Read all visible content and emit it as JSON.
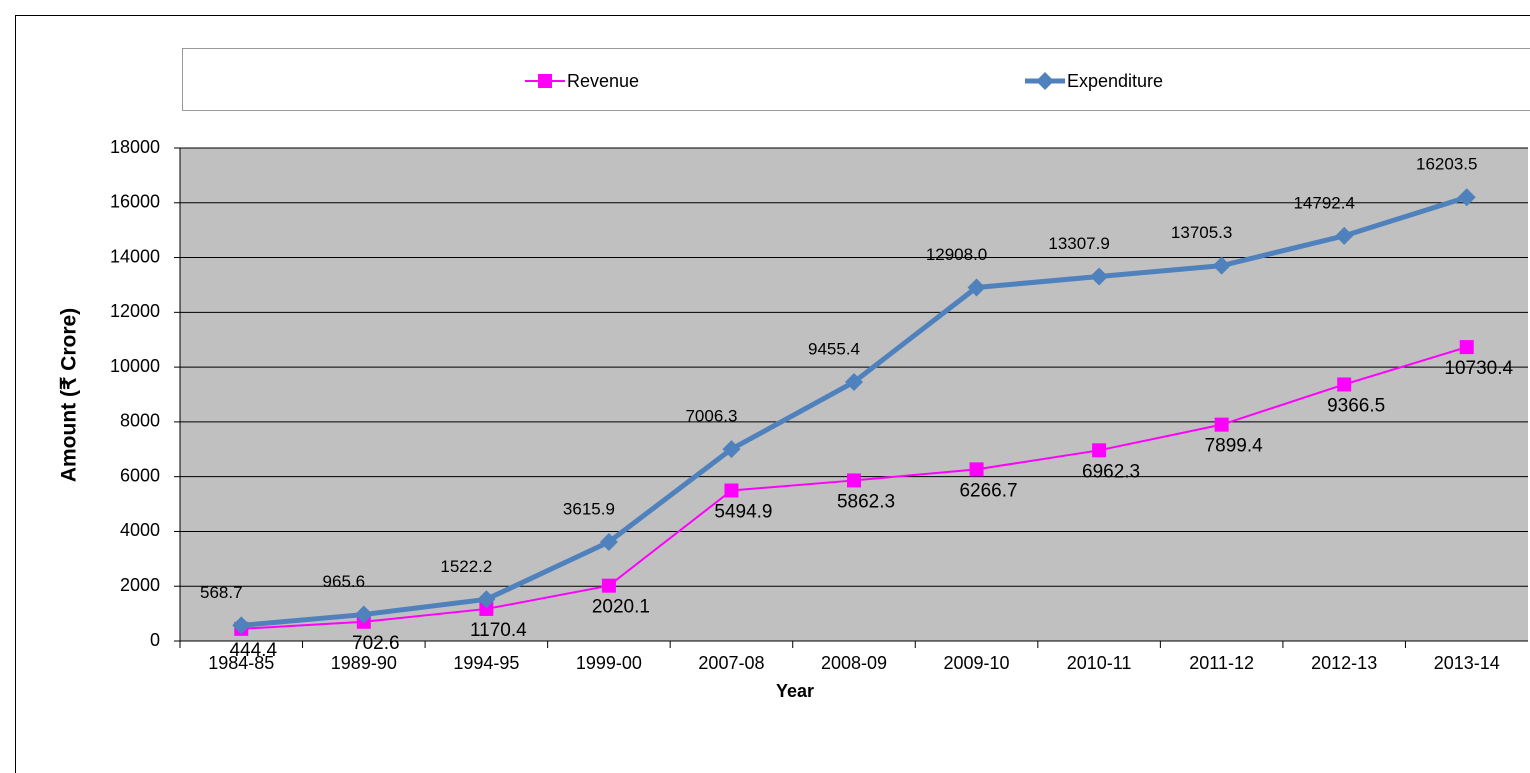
{
  "chart_data": {
    "type": "line",
    "x_label": "Year",
    "y_label": "Amount (₹ Crore)",
    "categories": [
      "1984-85",
      "1989-90",
      "1994-95",
      "1999-00",
      "2007-08",
      "2008-09",
      "2009-10",
      "2010-11",
      "2011-12",
      "2012-13",
      "2013-14"
    ],
    "series": [
      {
        "name": "Revenue",
        "color": "#ff00ff",
        "marker": "square",
        "values": [
          444.4,
          702.6,
          1170.4,
          2020.1,
          5494.9,
          5862.3,
          6266.7,
          6962.3,
          7899.4,
          9366.5,
          10730.4
        ],
        "value_labels": [
          "444.4",
          "702.6",
          "1170.4",
          "2020.1",
          "5494.9",
          "5862.3",
          "6266.7",
          "6962.3",
          "7899.4",
          "9366.5",
          "10730.4"
        ]
      },
      {
        "name": "Expenditure",
        "color": "#4f81bd",
        "marker": "diamond",
        "values": [
          568.7,
          965.6,
          1522.2,
          3615.9,
          7006.3,
          9455.4,
          12908.0,
          13307.9,
          13705.3,
          14792.4,
          16203.5
        ],
        "value_labels": [
          "568.7",
          "965.6",
          "1522.2",
          "3615.9",
          "7006.3",
          "9455.4",
          "12908.0",
          "13307.9",
          "13705.3",
          "14792.4",
          "16203.5"
        ]
      }
    ],
    "ylim": [
      0,
      18000
    ],
    "yticks": [
      0,
      2000,
      4000,
      6000,
      8000,
      10000,
      12000,
      14000,
      16000,
      18000
    ],
    "grid": true,
    "legend": "top",
    "plot_background": "#c0c0c0"
  }
}
